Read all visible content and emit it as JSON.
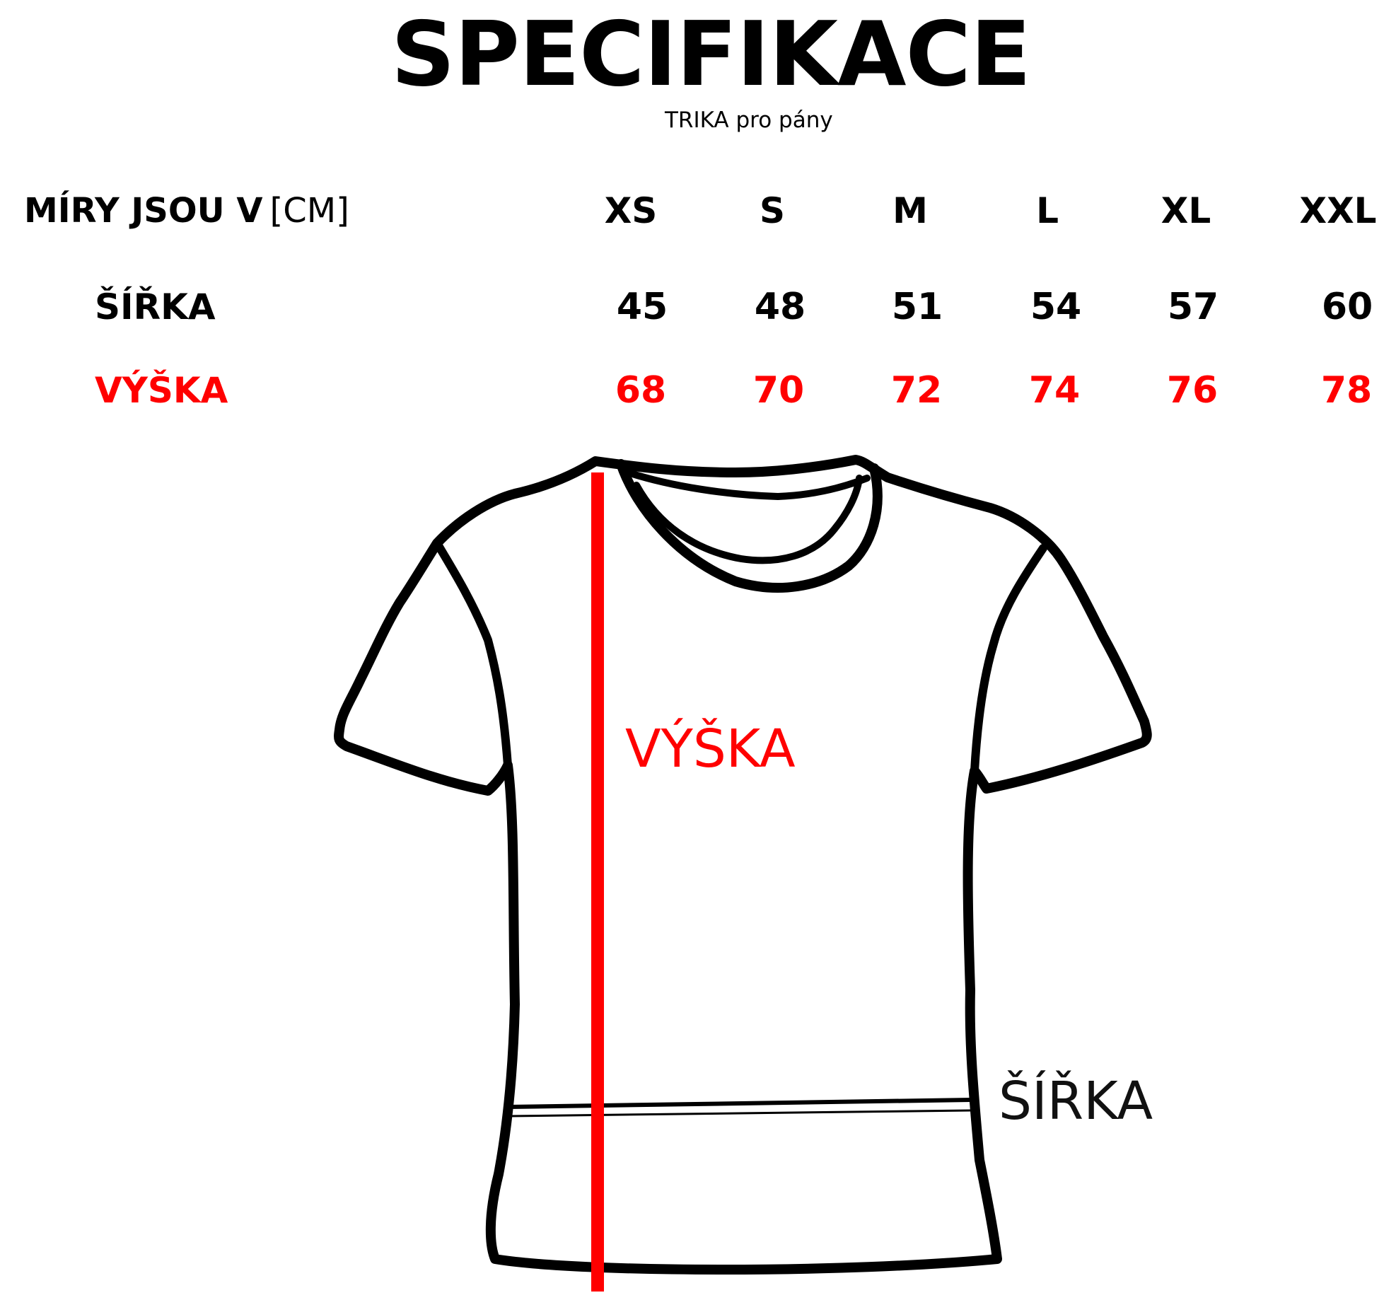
{
  "header": {
    "title": "SPECIFIKACE",
    "subtitle": "TRIKA pro pány"
  },
  "table": {
    "units_label": "MÍRY JSOU V",
    "units_value": "[CM]",
    "sizes": [
      "XS",
      "S",
      "M",
      "L",
      "XL",
      "XXL"
    ],
    "rows": [
      {
        "label": "ŠÍŘKA",
        "values": [
          "45",
          "48",
          "51",
          "54",
          "57",
          "60"
        ],
        "color": "#000000"
      },
      {
        "label": "VÝŠKA",
        "values": [
          "68",
          "70",
          "72",
          "74",
          "76",
          "78"
        ],
        "color": "#ff0000"
      }
    ]
  },
  "diagram": {
    "icon": "tshirt-outline-icon",
    "height_label": "VÝŠKA",
    "width_label": "ŠÍŘKA",
    "height_line_color": "#ff0000",
    "width_line_color": "#000000"
  }
}
